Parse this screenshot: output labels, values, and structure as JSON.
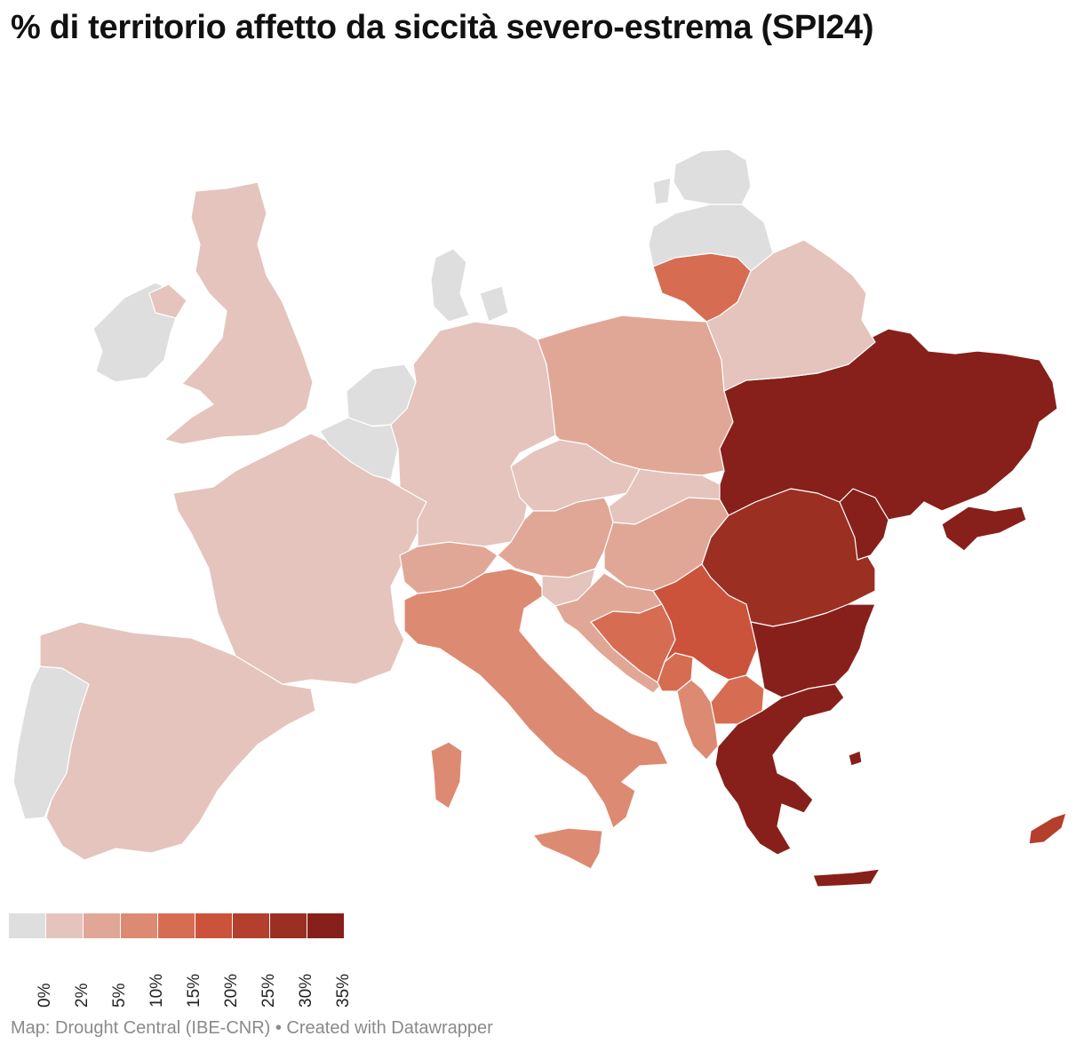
{
  "title": "% di territorio affetto da siccità severo-estrema  (SPI24)",
  "legend": {
    "swatches": [
      "#dedede",
      "#e4c4bc",
      "#e1a796",
      "#dd8a73",
      "#d66d53",
      "#cb533b",
      "#b43f2c",
      "#9b2f22",
      "#87201a"
    ],
    "ticks": [
      "0%",
      "2%",
      "5%",
      "10%",
      "15%",
      "20%",
      "25%",
      "30%",
      "35%"
    ]
  },
  "countries": [
    {
      "name": "Ireland",
      "class": "0%"
    },
    {
      "name": "United Kingdom",
      "class": "2%"
    },
    {
      "name": "Portugal",
      "class": "0%"
    },
    {
      "name": "Spain",
      "class": "2%"
    },
    {
      "name": "France",
      "class": "2%"
    },
    {
      "name": "Belgium",
      "class": "0%"
    },
    {
      "name": "Netherlands",
      "class": "0%"
    },
    {
      "name": "Denmark",
      "class": "0%"
    },
    {
      "name": "Germany",
      "class": "2%"
    },
    {
      "name": "Poland",
      "class": "5%"
    },
    {
      "name": "Czechia",
      "class": "2%"
    },
    {
      "name": "Slovakia",
      "class": "2%"
    },
    {
      "name": "Austria",
      "class": "5%"
    },
    {
      "name": "Switzerland",
      "class": "5%"
    },
    {
      "name": "Italy",
      "class": "10%"
    },
    {
      "name": "Slovenia",
      "class": "2%"
    },
    {
      "name": "Hungary",
      "class": "5%"
    },
    {
      "name": "Croatia",
      "class": "5%"
    },
    {
      "name": "Bosnia and Herzegovina",
      "class": "15%"
    },
    {
      "name": "Serbia",
      "class": "20%"
    },
    {
      "name": "Montenegro",
      "class": "15%"
    },
    {
      "name": "Albania",
      "class": "10%"
    },
    {
      "name": "North Macedonia",
      "class": "15%"
    },
    {
      "name": "Romania",
      "class": "30%"
    },
    {
      "name": "Moldova",
      "class": "35%"
    },
    {
      "name": "Bulgaria",
      "class": "35%"
    },
    {
      "name": "Greece",
      "class": "35%"
    },
    {
      "name": "Ukraine",
      "class": "35%"
    },
    {
      "name": "Belarus",
      "class": "2%"
    },
    {
      "name": "Lithuania",
      "class": "15%"
    },
    {
      "name": "Latvia",
      "class": "0%"
    },
    {
      "name": "Estonia",
      "class": "0%"
    },
    {
      "name": "Cyprus",
      "class": "25%"
    }
  ],
  "footer": "Map: Drought Central (IBE-CNR) • Created with Datawrapper"
}
